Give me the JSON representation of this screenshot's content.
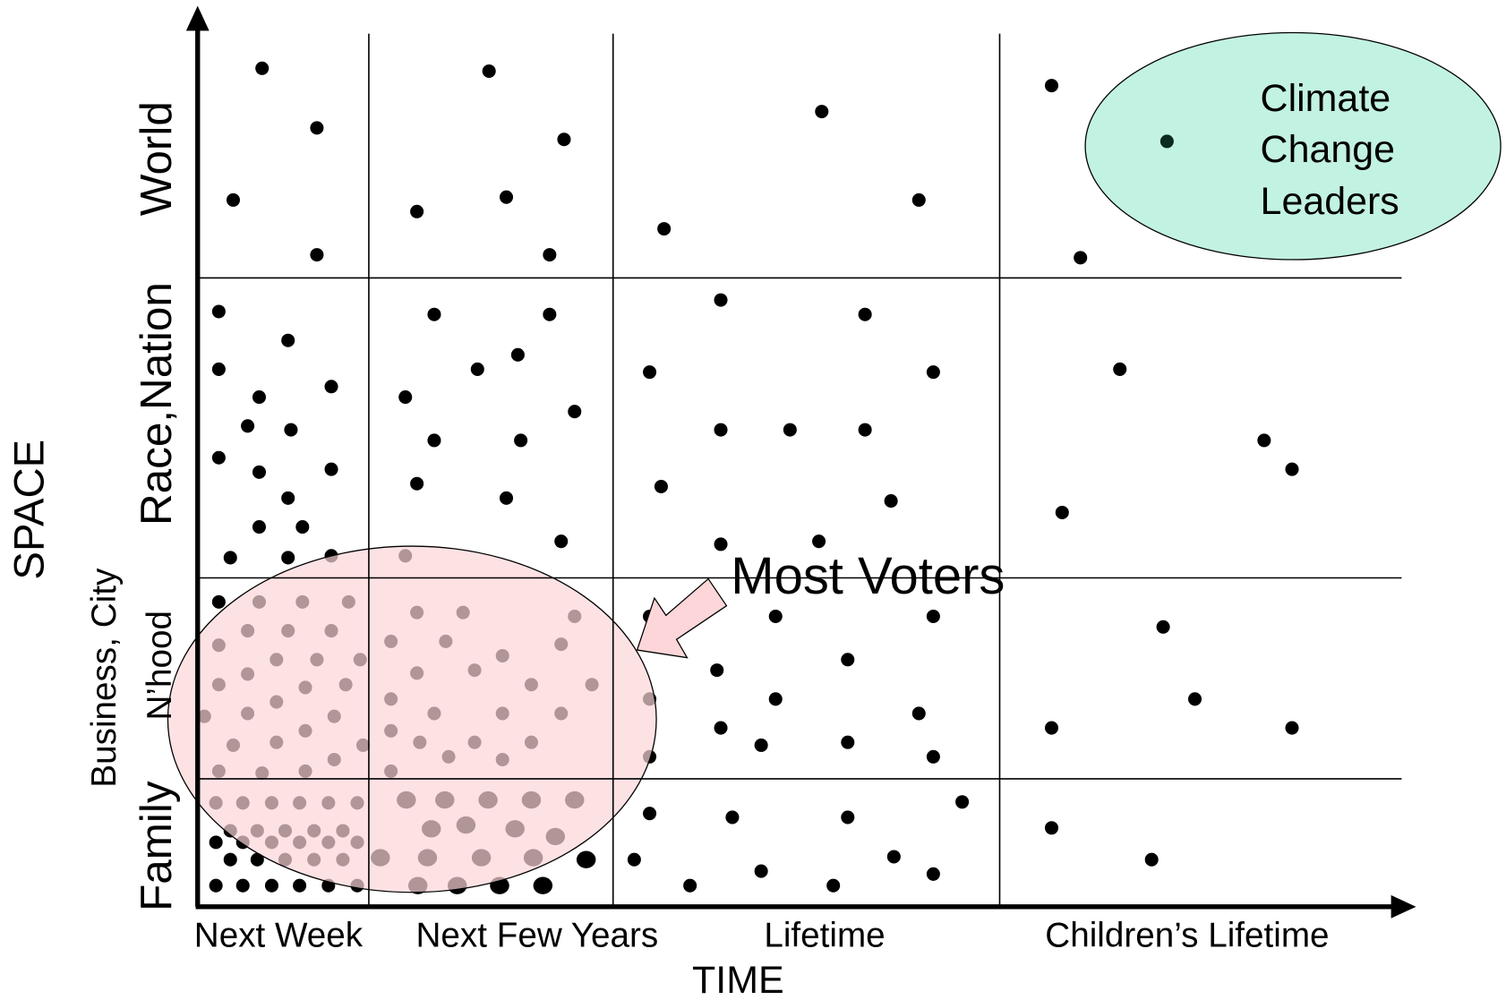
{
  "axes": {
    "y_label": "SPACE",
    "x_label": "TIME"
  },
  "columns": [
    "Next Week",
    "Next Few Years",
    "Lifetime",
    "Children’s Lifetime"
  ],
  "rows": [
    "World",
    "Race,Nation",
    "N’hood",
    "Family"
  ],
  "row_sublabel": "Business, City",
  "annotations": {
    "most_voters": "Most Voters",
    "climate_leaders": [
      "Climate",
      "Change",
      "Leaders"
    ]
  }
}
